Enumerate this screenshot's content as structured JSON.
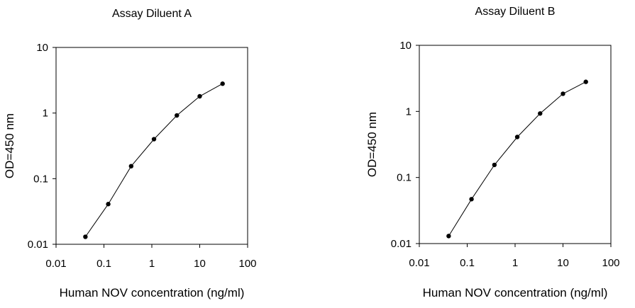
{
  "chart_data": [
    {
      "type": "line",
      "title": "Assay Diluent A",
      "xlabel": "Human NOV concentration (ng/ml)",
      "ylabel": "OD=450 nm",
      "x_scale": "log",
      "y_scale": "log",
      "xlim": [
        0.01,
        100
      ],
      "ylim": [
        0.01,
        10
      ],
      "x_ticks": [
        "0.01",
        "0.1",
        "1",
        "10",
        "100"
      ],
      "y_ticks": [
        "0.01",
        "0.1",
        "1",
        "10"
      ],
      "grid": false,
      "series": [
        {
          "x": [
            0.041,
            0.123,
            0.37,
            1.11,
            3.33,
            10,
            30
          ],
          "y": [
            0.013,
            0.041,
            0.155,
            0.4,
            0.92,
            1.8,
            2.8
          ]
        }
      ]
    },
    {
      "type": "line",
      "title": "Assay Diluent B",
      "xlabel": "Human NOV concentration (ng/ml)",
      "ylabel": "OD=450 nm",
      "x_scale": "log",
      "y_scale": "log",
      "xlim": [
        0.01,
        100
      ],
      "ylim": [
        0.01,
        10
      ],
      "x_ticks": [
        "0.01",
        "0.1",
        "1",
        "10",
        "100"
      ],
      "y_ticks": [
        "0.01",
        "0.1",
        "1",
        "10"
      ],
      "grid": false,
      "series": [
        {
          "x": [
            0.041,
            0.123,
            0.37,
            1.11,
            3.33,
            10,
            30
          ],
          "y": [
            0.013,
            0.047,
            0.155,
            0.41,
            0.93,
            1.85,
            2.8
          ]
        }
      ]
    }
  ]
}
